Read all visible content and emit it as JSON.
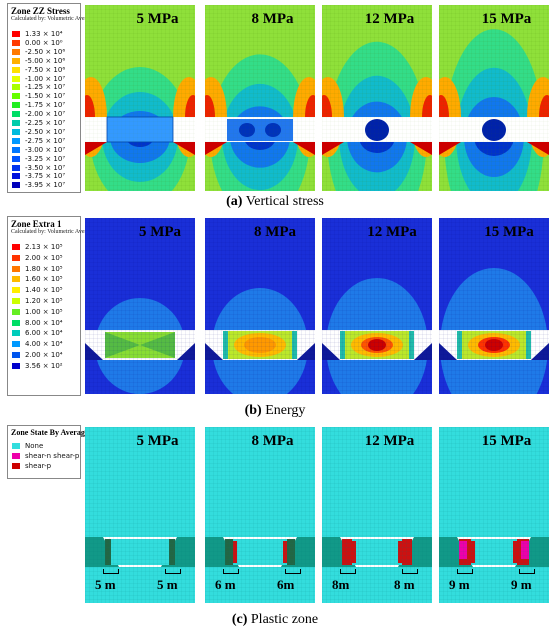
{
  "stress": {
    "legend_title": "Zone ZZ Stress",
    "legend_sub": "Calculated by: Volumetric Averaging",
    "legend": [
      {
        "label": "1.33 × 10⁴",
        "color": "#ff0000"
      },
      {
        "label": "0.00 × 10⁰",
        "color": "#ff3a00"
      },
      {
        "label": "-2.50 × 10⁶",
        "color": "#ff7a00"
      },
      {
        "label": "-5.00 × 10⁶",
        "color": "#ffb000"
      },
      {
        "label": "-7.50 × 10⁶",
        "color": "#ffe000"
      },
      {
        "label": "-1.00 × 10⁷",
        "color": "#e6ff00"
      },
      {
        "label": "-1.25 × 10⁷",
        "color": "#aaff00"
      },
      {
        "label": "-1.50 × 10⁷",
        "color": "#66ff00"
      },
      {
        "label": "-1.75 × 10⁷",
        "color": "#22ee22"
      },
      {
        "label": "-2.00 × 10⁷",
        "color": "#00dd66"
      },
      {
        "label": "-2.25 × 10⁷",
        "color": "#00ccaa"
      },
      {
        "label": "-2.50 × 10⁷",
        "color": "#00bbdd"
      },
      {
        "label": "-2.75 × 10⁷",
        "color": "#0099ff"
      },
      {
        "label": "-3.00 × 10⁷",
        "color": "#0077ff"
      },
      {
        "label": "-3.25 × 10⁷",
        "color": "#0055ff"
      },
      {
        "label": "-3.50 × 10⁷",
        "color": "#0033ee"
      },
      {
        "label": "-3.75 × 10⁷",
        "color": "#0011dd"
      },
      {
        "label": "-3.95 × 10⁷",
        "color": "#0000bb"
      }
    ],
    "panels": [
      "5 MPa",
      "8 MPa",
      "12 MPa",
      "15 MPa"
    ],
    "caption_letter": "(a)",
    "caption_text": " Vertical stress"
  },
  "energy": {
    "legend_title": "Zone Extra 1",
    "legend_sub": "Calculated by: Volumetric Averaging",
    "legend": [
      {
        "label": "2.13 × 10⁵",
        "color": "#ff0000"
      },
      {
        "label": "2.00 × 10⁵",
        "color": "#ff3300"
      },
      {
        "label": "1.80 × 10⁵",
        "color": "#ff7700"
      },
      {
        "label": "1.60 × 10⁵",
        "color": "#ffbb00"
      },
      {
        "label": "1.40 × 10⁵",
        "color": "#ffee00"
      },
      {
        "label": "1.20 × 10⁵",
        "color": "#ccff00"
      },
      {
        "label": "1.00 × 10⁵",
        "color": "#66ee22"
      },
      {
        "label": "8.00 × 10⁴",
        "color": "#00dd66"
      },
      {
        "label": "6.00 × 10⁴",
        "color": "#00ccbb"
      },
      {
        "label": "4.00 × 10⁴",
        "color": "#0099ff"
      },
      {
        "label": "2.00 × 10⁴",
        "color": "#0055ee"
      },
      {
        "label": "3.56 × 10²",
        "color": "#0000cc"
      }
    ],
    "panels": [
      "5 MPa",
      "8 MPa",
      "12 MPa",
      "15 MPa"
    ],
    "caption_letter": "(b)",
    "caption_text": " Energy"
  },
  "plastic": {
    "legend_title": "Zone State By Average",
    "legend": [
      {
        "label": "None",
        "color": "#33dddd"
      },
      {
        "label": "shear-n shear-p",
        "color": "#ee00aa"
      },
      {
        "label": "shear-p",
        "color": "#cc0000"
      }
    ],
    "panels": [
      "5 MPa",
      "8 MPa",
      "12 MPa",
      "15 MPa"
    ],
    "dims": [
      [
        "5 m",
        "5 m"
      ],
      [
        "6 m",
        "6m"
      ],
      [
        "8m",
        "8 m"
      ],
      [
        "9 m",
        "9 m"
      ]
    ],
    "caption_letter": "(c)",
    "caption_text": " Plastic zone"
  }
}
